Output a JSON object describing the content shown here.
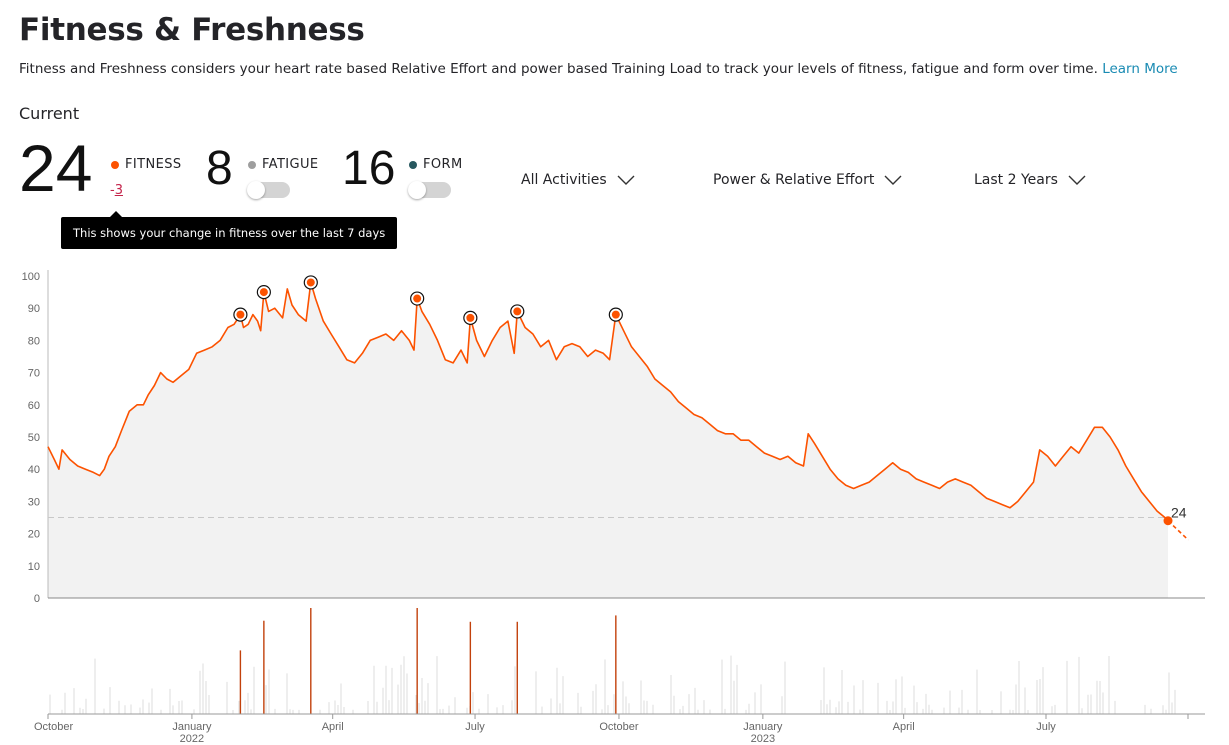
{
  "header": {
    "title": "Fitness & Freshness",
    "description": "Fitness and Freshness considers your heart rate based Relative Effort and power based Training Load to track your levels of fitness, fatigue and form over time.",
    "learn_more": "Learn More"
  },
  "current": {
    "label": "Current",
    "fitness": {
      "value": "24",
      "label": "FITNESS",
      "change_sign": "-",
      "change": "3",
      "color": "#fc5200"
    },
    "fatigue": {
      "value": "8",
      "label": "FATIGUE",
      "color": "#9e9e9e",
      "toggle_on": false
    },
    "form": {
      "value": "16",
      "label": "FORM",
      "color": "#27585f",
      "toggle_on": false
    }
  },
  "filters": {
    "activities": "All Activities",
    "metric": "Power & Relative Effort",
    "range": "Last 2 Years"
  },
  "tooltip": "This shows your change in fitness over the last 7 days",
  "chart_data": {
    "type": "area",
    "ylim": [
      0,
      100
    ],
    "yticks": [
      0,
      10,
      20,
      30,
      40,
      50,
      60,
      70,
      80,
      90,
      100
    ],
    "x_range": [
      "2021-10-01",
      "2023-10-31"
    ],
    "xticks": [
      {
        "date": "2021-10-01",
        "label": "October",
        "sublabel": ""
      },
      {
        "date": "2022-01-01",
        "label": "January",
        "sublabel": "2022"
      },
      {
        "date": "2022-04-01",
        "label": "April",
        "sublabel": ""
      },
      {
        "date": "2022-07-01",
        "label": "July",
        "sublabel": ""
      },
      {
        "date": "2022-10-01",
        "label": "October",
        "sublabel": ""
      },
      {
        "date": "2023-01-01",
        "label": "January",
        "sublabel": "2023"
      },
      {
        "date": "2023-04-01",
        "label": "April",
        "sublabel": ""
      },
      {
        "date": "2023-07-01",
        "label": "July",
        "sublabel": ""
      }
    ],
    "series": [
      {
        "points": [
          [
            "2021-10-01",
            47
          ],
          [
            "2021-10-05",
            43
          ],
          [
            "2021-10-08",
            40
          ],
          [
            "2021-10-10",
            46
          ],
          [
            "2021-10-15",
            43
          ],
          [
            "2021-10-20",
            41
          ],
          [
            "2021-10-25",
            40
          ],
          [
            "2021-10-30",
            39
          ],
          [
            "2021-11-03",
            38
          ],
          [
            "2021-11-06",
            40
          ],
          [
            "2021-11-09",
            44
          ],
          [
            "2021-11-13",
            47
          ],
          [
            "2021-11-17",
            52
          ],
          [
            "2021-11-22",
            58
          ],
          [
            "2021-11-27",
            60
          ],
          [
            "2021-12-01",
            60
          ],
          [
            "2021-12-04",
            63
          ],
          [
            "2021-12-08",
            66
          ],
          [
            "2021-12-12",
            70
          ],
          [
            "2021-12-16",
            68
          ],
          [
            "2021-12-20",
            67
          ],
          [
            "2021-12-25",
            69
          ],
          [
            "2021-12-30",
            71
          ],
          [
            "2022-01-04",
            76
          ],
          [
            "2022-01-09",
            77
          ],
          [
            "2022-01-14",
            78
          ],
          [
            "2022-01-19",
            80
          ],
          [
            "2022-01-24",
            84
          ],
          [
            "2022-01-28",
            85
          ],
          [
            "2022-02-01",
            88
          ],
          [
            "2022-02-03",
            84
          ],
          [
            "2022-02-06",
            85
          ],
          [
            "2022-02-09",
            88
          ],
          [
            "2022-02-12",
            86
          ],
          [
            "2022-02-14",
            83
          ],
          [
            "2022-02-16",
            95
          ],
          [
            "2022-02-19",
            89
          ],
          [
            "2022-02-23",
            90
          ],
          [
            "2022-02-28",
            87
          ],
          [
            "2022-03-03",
            96
          ],
          [
            "2022-03-06",
            91
          ],
          [
            "2022-03-10",
            88
          ],
          [
            "2022-03-15",
            86
          ],
          [
            "2022-03-18",
            98
          ],
          [
            "2022-03-21",
            93
          ],
          [
            "2022-03-26",
            86
          ],
          [
            "2022-03-31",
            82
          ],
          [
            "2022-04-05",
            78
          ],
          [
            "2022-04-10",
            74
          ],
          [
            "2022-04-15",
            73
          ],
          [
            "2022-04-20",
            76
          ],
          [
            "2022-04-25",
            80
          ],
          [
            "2022-04-30",
            81
          ],
          [
            "2022-05-05",
            82
          ],
          [
            "2022-05-10",
            80
          ],
          [
            "2022-05-15",
            83
          ],
          [
            "2022-05-20",
            80
          ],
          [
            "2022-05-23",
            77
          ],
          [
            "2022-05-25",
            93
          ],
          [
            "2022-05-28",
            89
          ],
          [
            "2022-06-02",
            85
          ],
          [
            "2022-06-07",
            80
          ],
          [
            "2022-06-12",
            74
          ],
          [
            "2022-06-17",
            73
          ],
          [
            "2022-06-22",
            77
          ],
          [
            "2022-06-26",
            73
          ],
          [
            "2022-06-28",
            87
          ],
          [
            "2022-07-02",
            80
          ],
          [
            "2022-07-07",
            75
          ],
          [
            "2022-07-12",
            80
          ],
          [
            "2022-07-17",
            84
          ],
          [
            "2022-07-22",
            86
          ],
          [
            "2022-07-26",
            76
          ],
          [
            "2022-07-28",
            89
          ],
          [
            "2022-08-02",
            84
          ],
          [
            "2022-08-07",
            82
          ],
          [
            "2022-08-12",
            78
          ],
          [
            "2022-08-17",
            80
          ],
          [
            "2022-08-22",
            74
          ],
          [
            "2022-08-27",
            78
          ],
          [
            "2022-09-01",
            79
          ],
          [
            "2022-09-06",
            78
          ],
          [
            "2022-09-11",
            75
          ],
          [
            "2022-09-16",
            77
          ],
          [
            "2022-09-21",
            76
          ],
          [
            "2022-09-25",
            74
          ],
          [
            "2022-09-29",
            88
          ],
          [
            "2022-10-04",
            83
          ],
          [
            "2022-10-09",
            78
          ],
          [
            "2022-10-14",
            75
          ],
          [
            "2022-10-19",
            72
          ],
          [
            "2022-10-24",
            68
          ],
          [
            "2022-10-29",
            66
          ],
          [
            "2022-11-03",
            64
          ],
          [
            "2022-11-08",
            61
          ],
          [
            "2022-11-13",
            59
          ],
          [
            "2022-11-18",
            57
          ],
          [
            "2022-11-23",
            56
          ],
          [
            "2022-11-28",
            54
          ],
          [
            "2022-12-03",
            52
          ],
          [
            "2022-12-08",
            51
          ],
          [
            "2022-12-13",
            51
          ],
          [
            "2022-12-18",
            49
          ],
          [
            "2022-12-23",
            49
          ],
          [
            "2022-12-28",
            47
          ],
          [
            "2023-01-02",
            45
          ],
          [
            "2023-01-07",
            44
          ],
          [
            "2023-01-12",
            43
          ],
          [
            "2023-01-17",
            44
          ],
          [
            "2023-01-22",
            42
          ],
          [
            "2023-01-27",
            41
          ],
          [
            "2023-01-30",
            51
          ],
          [
            "2023-02-03",
            48
          ],
          [
            "2023-02-08",
            44
          ],
          [
            "2023-02-13",
            40
          ],
          [
            "2023-02-18",
            37
          ],
          [
            "2023-02-23",
            35
          ],
          [
            "2023-02-28",
            34
          ],
          [
            "2023-03-05",
            35
          ],
          [
            "2023-03-10",
            36
          ],
          [
            "2023-03-15",
            38
          ],
          [
            "2023-03-20",
            40
          ],
          [
            "2023-03-25",
            42
          ],
          [
            "2023-03-30",
            40
          ],
          [
            "2023-04-04",
            39
          ],
          [
            "2023-04-09",
            37
          ],
          [
            "2023-04-14",
            36
          ],
          [
            "2023-04-19",
            35
          ],
          [
            "2023-04-24",
            34
          ],
          [
            "2023-04-29",
            36
          ],
          [
            "2023-05-04",
            37
          ],
          [
            "2023-05-09",
            36
          ],
          [
            "2023-05-14",
            35
          ],
          [
            "2023-05-19",
            33
          ],
          [
            "2023-05-24",
            31
          ],
          [
            "2023-05-29",
            30
          ],
          [
            "2023-06-03",
            29
          ],
          [
            "2023-06-08",
            28
          ],
          [
            "2023-06-13",
            30
          ],
          [
            "2023-06-18",
            33
          ],
          [
            "2023-06-23",
            36
          ],
          [
            "2023-06-27",
            46
          ],
          [
            "2023-07-02",
            44
          ],
          [
            "2023-07-07",
            41
          ],
          [
            "2023-07-12",
            44
          ],
          [
            "2023-07-17",
            47
          ],
          [
            "2023-07-22",
            45
          ],
          [
            "2023-07-27",
            49
          ],
          [
            "2023-08-01",
            53
          ],
          [
            "2023-08-06",
            53
          ],
          [
            "2023-08-11",
            50
          ],
          [
            "2023-08-16",
            46
          ],
          [
            "2023-08-21",
            41
          ],
          [
            "2023-08-26",
            37
          ],
          [
            "2023-08-31",
            33
          ],
          [
            "2023-09-05",
            30
          ],
          [
            "2023-09-10",
            27
          ],
          [
            "2023-09-15",
            25
          ],
          [
            "2023-09-17",
            24
          ]
        ]
      }
    ],
    "projection": [
      [
        "2023-09-17",
        24
      ],
      [
        "2023-09-30",
        18
      ]
    ],
    "peaks": [
      [
        "2022-02-01",
        88
      ],
      [
        "2022-02-16",
        95
      ],
      [
        "2022-03-18",
        98
      ],
      [
        "2022-05-25",
        93
      ],
      [
        "2022-06-28",
        87
      ],
      [
        "2022-07-28",
        89
      ],
      [
        "2022-09-29",
        88
      ]
    ],
    "reference_line": 25,
    "current_value_label": "24",
    "activity_bars": {
      "highlighted": [
        [
          "2022-02-01",
          0.6
        ],
        [
          "2022-02-16",
          0.88
        ],
        [
          "2022-03-18",
          1.0
        ],
        [
          "2022-05-25",
          1.0
        ],
        [
          "2022-06-28",
          0.87
        ],
        [
          "2022-07-28",
          0.87
        ],
        [
          "2022-09-29",
          0.93
        ]
      ]
    },
    "colors": {
      "line": "#fc5200",
      "area": "#f2f2f2",
      "reference": "#c8c8c8",
      "bars": "#dddddd",
      "highlight_bars": "#c2410c"
    }
  }
}
